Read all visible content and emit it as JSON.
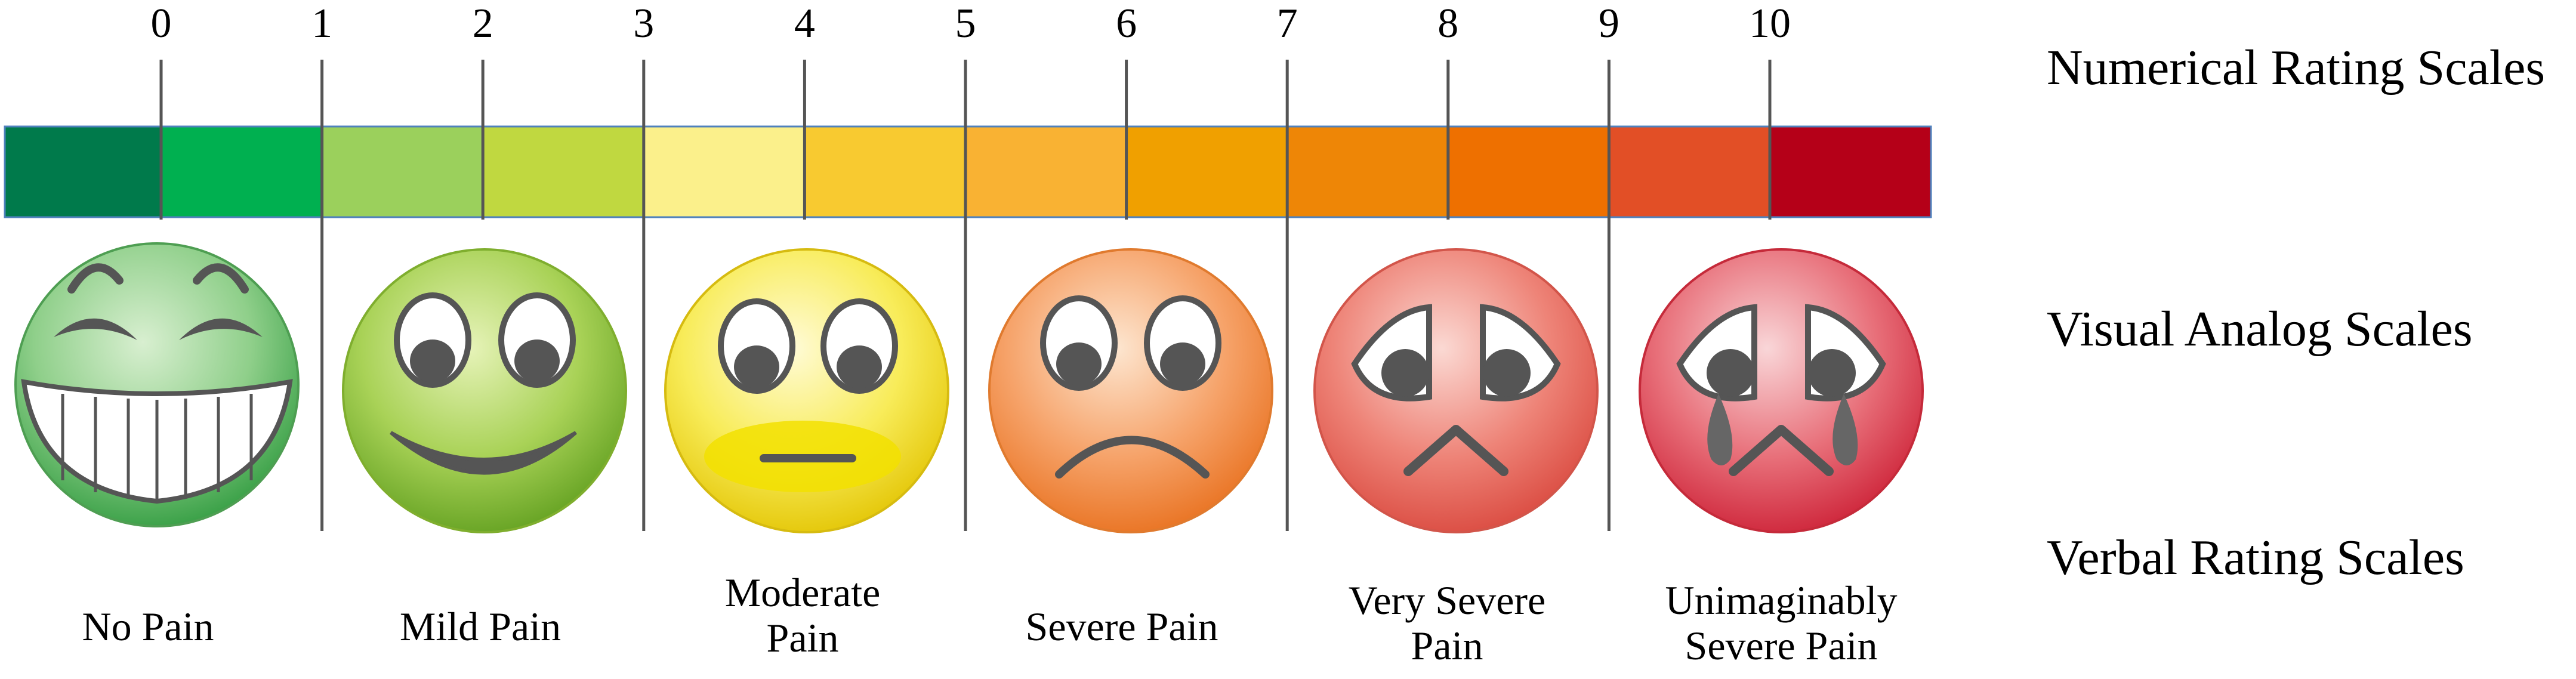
{
  "numbers": [
    "0",
    "1",
    "2",
    "3",
    "4",
    "5",
    "6",
    "7",
    "8",
    "9",
    "10"
  ],
  "segment_colors": [
    "#007a4b",
    "#00b050",
    "#9bd05c",
    "#c0d840",
    "#fbf08b",
    "#f8ca30",
    "#f9b233",
    "#f0a000",
    "#ee8606",
    "#ee7000",
    "#e24f26",
    "#b50018"
  ],
  "scale_labels": {
    "numerical": "Numerical Rating Scales",
    "visual": "Visual Analog Scales",
    "verbal": "Verbal Rating Scales"
  },
  "faces": [
    {
      "name": "no-pain-face-icon",
      "color": "#60b060"
    },
    {
      "name": "mild-pain-face-icon",
      "color": "#8cc43c"
    },
    {
      "name": "moderate-pain-face-icon",
      "color": "#f4e030"
    },
    {
      "name": "severe-pain-face-icon",
      "color": "#f08a30"
    },
    {
      "name": "very-severe-pain-face-icon",
      "color": "#e85a50"
    },
    {
      "name": "unimaginably-severe-pain-face-icon",
      "color": "#de3040"
    }
  ],
  "verbal_labels": [
    "No Pain",
    "Mild Pain",
    "Moderate\nPain",
    "Severe Pain",
    "Very Severe\nPain",
    "Unimaginably\nSevere Pain"
  ]
}
